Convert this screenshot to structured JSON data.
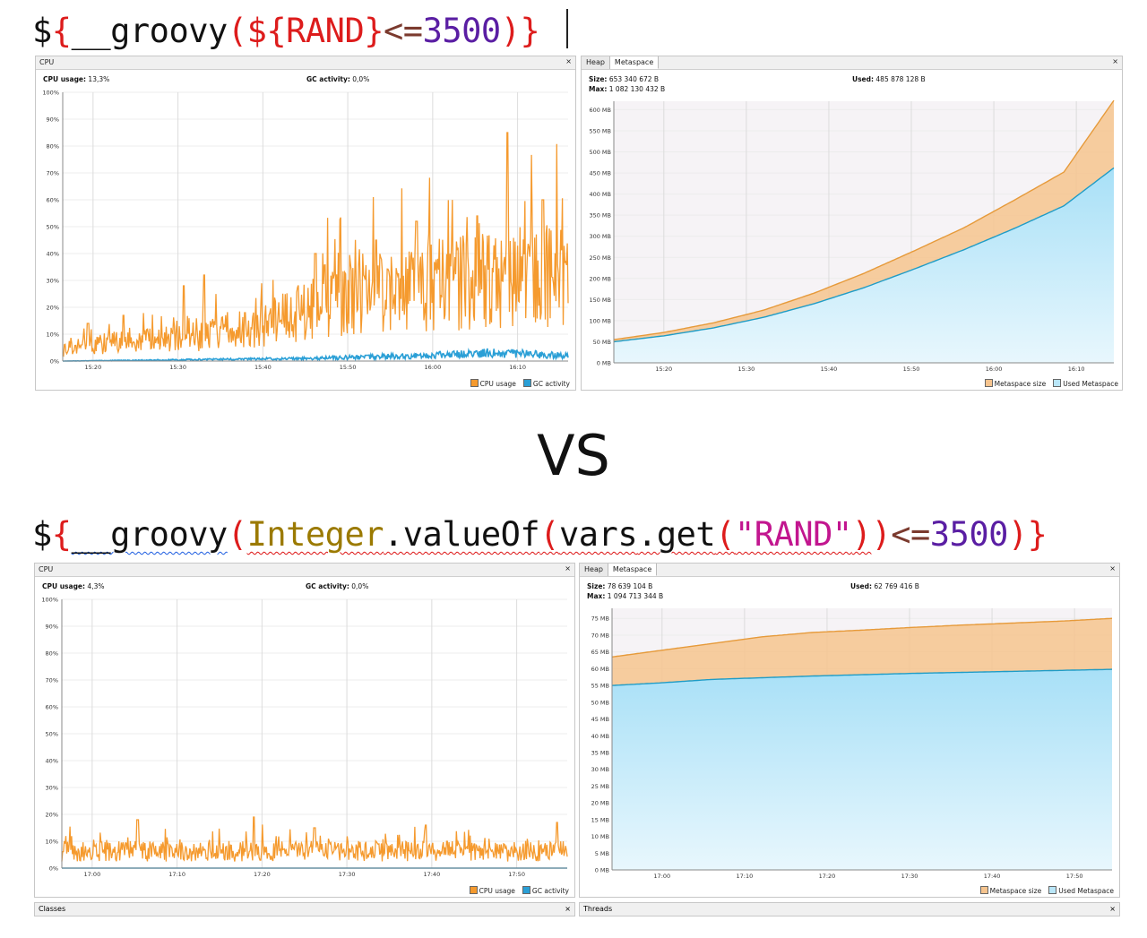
{
  "top_expr": {
    "tokens": [
      {
        "t": "$",
        "c": "c-k"
      },
      {
        "t": "{",
        "c": "c-r"
      },
      {
        "t": "__groovy",
        "c": "c-k"
      },
      {
        "t": "(",
        "c": "c-r"
      },
      {
        "t": "${",
        "c": "c-r"
      },
      {
        "t": "RAND",
        "c": "c-r"
      },
      {
        "t": "}",
        "c": "c-r"
      },
      {
        "t": "<=",
        "c": "c-b"
      },
      {
        "t": "3500",
        "c": "c-p"
      },
      {
        "t": ")",
        "c": "c-r"
      },
      {
        "t": "}",
        "c": "c-r"
      }
    ]
  },
  "vs_label": "VS",
  "bottom_expr": {
    "tokens": [
      {
        "t": "$",
        "c": "c-k"
      },
      {
        "t": "{",
        "c": "c-r"
      },
      {
        "t": "__groovy",
        "c": "c-k squig-b"
      },
      {
        "t": "(",
        "c": "c-r"
      },
      {
        "t": "Integer",
        "c": "c-o squig"
      },
      {
        "t": ".valueOf",
        "c": "c-k squig"
      },
      {
        "t": "(",
        "c": "c-r squig"
      },
      {
        "t": "vars",
        "c": "c-k squig"
      },
      {
        "t": ".get",
        "c": "c-k squig"
      },
      {
        "t": "(",
        "c": "c-r squig"
      },
      {
        "t": "\"RAND\"",
        "c": "c-m squig"
      },
      {
        "t": ")",
        "c": "c-r squig"
      },
      {
        "t": ")",
        "c": "c-r"
      },
      {
        "t": "<=",
        "c": "c-b"
      },
      {
        "t": "3500",
        "c": "c-p"
      },
      {
        "t": ")",
        "c": "c-r"
      },
      {
        "t": "}",
        "c": "c-r"
      }
    ]
  },
  "panels": {
    "cpu1": {
      "title": "CPU",
      "close": "×",
      "cpu_label": "CPU usage:",
      "cpu_value": "13,3%",
      "gc_label": "GC activity:",
      "gc_value": "0,0%",
      "legend": [
        "CPU usage",
        "GC activity"
      ]
    },
    "meta1": {
      "tabs": [
        "Heap",
        "Metaspace"
      ],
      "close": "×",
      "size_label": "Size:",
      "size_value": "653 340 672 B",
      "max_label": "Max:",
      "max_value": "1 082 130 432 B",
      "used_label": "Used:",
      "used_value": "485 878 128 B",
      "legend": [
        "Metaspace size",
        "Used Metaspace"
      ]
    },
    "cpu2": {
      "title": "CPU",
      "close": "×",
      "cpu_label": "CPU usage:",
      "cpu_value": "4,3%",
      "gc_label": "GC activity:",
      "gc_value": "0,0%",
      "legend": [
        "CPU usage",
        "GC activity"
      ]
    },
    "meta2": {
      "tabs": [
        "Heap",
        "Metaspace"
      ],
      "close": "×",
      "size_label": "Size:",
      "size_value": "78 639 104 B",
      "max_label": "Max:",
      "max_value": "1 094 713 344 B",
      "used_label": "Used:",
      "used_value": "62 769 416 B",
      "legend": [
        "Metaspace size",
        "Used Metaspace"
      ]
    },
    "classes": {
      "title": "Classes",
      "close": "×"
    },
    "threads": {
      "title": "Threads",
      "close": "×"
    }
  },
  "colors": {
    "cpu": "#f59a2e",
    "gc": "#2a9fd6",
    "meta_size_fill": "#f6c48e",
    "meta_size_line": "#e69a3a",
    "used_fill": "#b9e6f8",
    "used_line": "#1f9cc6",
    "plot_bg": "#f6f3f6",
    "grid": "#d9d9d9"
  },
  "chart_data": [
    {
      "type": "line",
      "name": "CPU (top)",
      "x_ticks": [
        "15:20",
        "15:30",
        "15:40",
        "15:50",
        "16:00",
        "16:10"
      ],
      "y_ticks": [
        "0%",
        "10%",
        "20%",
        "30%",
        "40%",
        "50%",
        "60%",
        "70%",
        "80%",
        "90%",
        "100%"
      ],
      "ylim": [
        0,
        100
      ],
      "series": [
        {
          "name": "CPU usage",
          "trend": [
            [
              0,
              5
            ],
            [
              10,
              8
            ],
            [
              20,
              9
            ],
            [
              30,
              11
            ],
            [
              40,
              15
            ],
            [
              50,
              22
            ],
            [
              60,
              28
            ],
            [
              70,
              30
            ],
            [
              80,
              33
            ],
            [
              90,
              35
            ],
            [
              100,
              36
            ]
          ],
          "peaks": [
            [
              5,
              14
            ],
            [
              12,
              17
            ],
            [
              24,
              28
            ],
            [
              28,
              32
            ],
            [
              36,
              18
            ],
            [
              50,
              40
            ],
            [
              62,
              45
            ],
            [
              70,
              52
            ],
            [
              82,
              54
            ],
            [
              88,
              85
            ],
            [
              95,
              60
            ]
          ]
        },
        {
          "name": "GC activity",
          "trend": [
            [
              0,
              0
            ],
            [
              50,
              1
            ],
            [
              70,
              2
            ],
            [
              85,
              3
            ],
            [
              100,
              2
            ]
          ]
        }
      ]
    },
    {
      "type": "area",
      "name": "Metaspace (top)",
      "x_ticks": [
        "15:20",
        "15:30",
        "15:40",
        "15:50",
        "16:00",
        "16:10"
      ],
      "y_ticks": [
        "0 MB",
        "50 MB",
        "100 MB",
        "150 MB",
        "200 MB",
        "250 MB",
        "300 MB",
        "350 MB",
        "400 MB",
        "450 MB",
        "500 MB",
        "550 MB",
        "600 MB"
      ],
      "ylim": [
        0,
        620
      ],
      "series": [
        {
          "name": "Metaspace size",
          "points": [
            [
              0,
              55
            ],
            [
              10,
              72
            ],
            [
              20,
              95
            ],
            [
              30,
              125
            ],
            [
              40,
              165
            ],
            [
              50,
              212
            ],
            [
              60,
              265
            ],
            [
              70,
              320
            ],
            [
              80,
              385
            ],
            [
              90,
              452
            ],
            [
              100,
              622
            ]
          ]
        },
        {
          "name": "Used Metaspace",
          "points": [
            [
              0,
              50
            ],
            [
              10,
              64
            ],
            [
              20,
              83
            ],
            [
              30,
              108
            ],
            [
              40,
              140
            ],
            [
              50,
              178
            ],
            [
              60,
              222
            ],
            [
              70,
              268
            ],
            [
              80,
              318
            ],
            [
              90,
              372
            ],
            [
              100,
              462
            ]
          ]
        }
      ]
    },
    {
      "type": "line",
      "name": "CPU (bottom)",
      "x_ticks": [
        "17:00",
        "17:10",
        "17:20",
        "17:30",
        "17:40",
        "17:50"
      ],
      "y_ticks": [
        "0%",
        "10%",
        "20%",
        "30%",
        "40%",
        "50%",
        "60%",
        "70%",
        "80%",
        "90%",
        "100%"
      ],
      "ylim": [
        0,
        100
      ],
      "series": [
        {
          "name": "CPU usage",
          "trend": [
            [
              0,
              7
            ],
            [
              100,
              7
            ]
          ],
          "peaks": [
            [
              15,
              18
            ],
            [
              38,
              19
            ],
            [
              50,
              15
            ],
            [
              72,
              16
            ],
            [
              98,
              17
            ]
          ]
        },
        {
          "name": "GC activity",
          "trend": [
            [
              0,
              0
            ],
            [
              100,
              0
            ]
          ]
        }
      ]
    },
    {
      "type": "area",
      "name": "Metaspace (bottom)",
      "x_ticks": [
        "17:00",
        "17:10",
        "17:20",
        "17:30",
        "17:40",
        "17:50"
      ],
      "y_ticks": [
        "0 MB",
        "5 MB",
        "10 MB",
        "15 MB",
        "20 MB",
        "25 MB",
        "30 MB",
        "35 MB",
        "40 MB",
        "45 MB",
        "50 MB",
        "55 MB",
        "60 MB",
        "65 MB",
        "70 MB",
        "75 MB"
      ],
      "ylim": [
        0,
        78
      ],
      "series": [
        {
          "name": "Metaspace size",
          "points": [
            [
              0,
              63.5
            ],
            [
              10,
              65.5
            ],
            [
              20,
              67.5
            ],
            [
              30,
              69.5
            ],
            [
              40,
              70.8
            ],
            [
              50,
              71.5
            ],
            [
              60,
              72.3
            ],
            [
              70,
              73
            ],
            [
              80,
              73.6
            ],
            [
              90,
              74.2
            ],
            [
              100,
              75
            ]
          ]
        },
        {
          "name": "Used Metaspace",
          "points": [
            [
              0,
              55
            ],
            [
              10,
              55.8
            ],
            [
              20,
              56.8
            ],
            [
              30,
              57.3
            ],
            [
              40,
              57.8
            ],
            [
              50,
              58.2
            ],
            [
              60,
              58.6
            ],
            [
              70,
              58.9
            ],
            [
              80,
              59.2
            ],
            [
              90,
              59.5
            ],
            [
              100,
              59.8
            ]
          ]
        }
      ]
    }
  ]
}
